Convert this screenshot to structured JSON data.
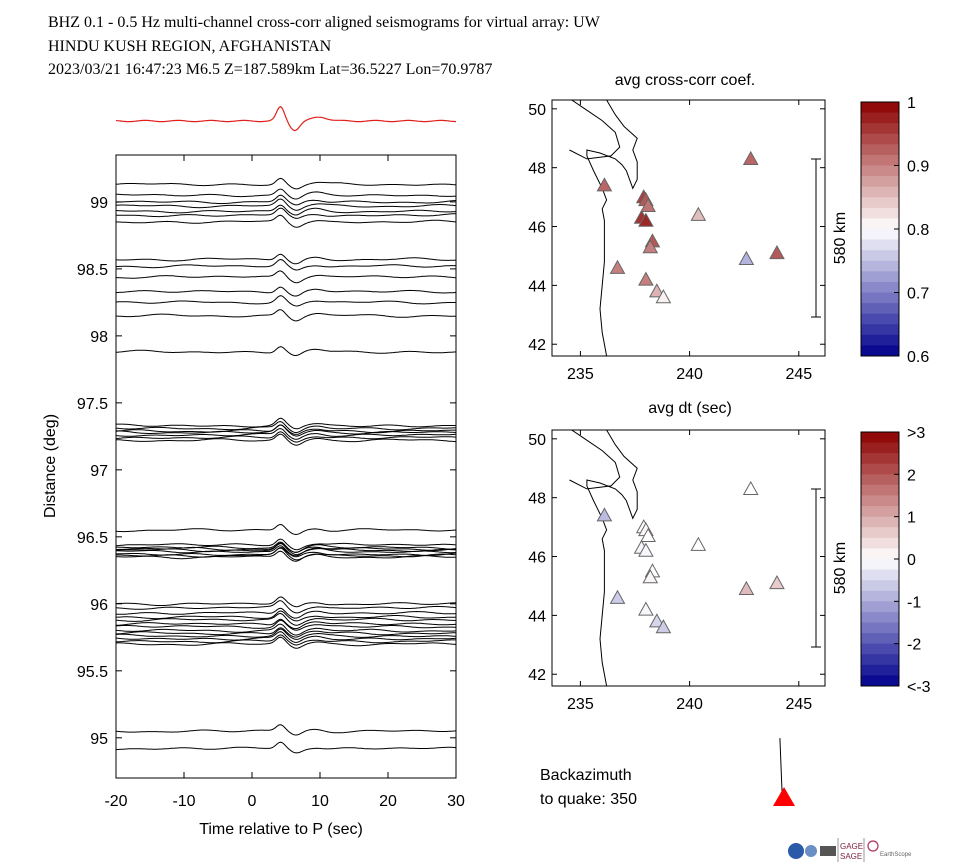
{
  "header": {
    "line1": "BHZ  0.1 - 0.5 Hz  multi-channel cross-corr aligned seismograms for virtual array: UW",
    "line2": "HINDU KUSH REGION, AFGHANISTAN",
    "line3": "2023/03/21  16:47:23  M6.5  Z=187.589km Lat=36.5227 Lon=70.9787"
  },
  "colors": {
    "stack": "#e0201c",
    "trace": "#000000",
    "triangle_pointer": "#ff0000"
  },
  "chart_data": [
    {
      "type": "line",
      "name": "seismogram-record-section",
      "xlabel": "Time relative to P (sec)",
      "ylabel": "Distance (deg)",
      "xlim": [
        -20,
        30
      ],
      "ylim": [
        94.7,
        99.35
      ],
      "xticks": [
        "-20",
        "-10",
        "0",
        "10",
        "20",
        "30"
      ],
      "yticks": [
        "95",
        "95.5",
        "96",
        "96.5",
        "97",
        "97.5",
        "98",
        "98.5",
        "99"
      ],
      "trace_distances_deg": [
        99.13,
        99.05,
        99.0,
        98.97,
        98.93,
        98.9,
        98.85,
        98.57,
        98.52,
        98.44,
        98.33,
        98.25,
        98.15,
        97.88,
        97.33,
        97.31,
        97.29,
        97.28,
        97.26,
        97.24,
        97.22,
        96.55,
        96.44,
        96.42,
        96.41,
        96.4,
        96.39,
        96.37,
        96.36,
        96.35,
        96.0,
        95.97,
        95.93,
        95.9,
        95.88,
        95.85,
        95.83,
        95.8,
        95.78,
        95.76,
        95.74,
        95.72,
        95.7,
        95.05,
        94.92
      ],
      "stack_above_axes": true
    },
    {
      "type": "scatter",
      "name": "cross-corr-map",
      "title": "avg cross-corr coef.",
      "xticks": [
        "235",
        "240",
        "245"
      ],
      "yticks": [
        "42",
        "44",
        "46",
        "48",
        "50"
      ],
      "xlim": [
        233.7,
        246.2
      ],
      "ylim": [
        41.6,
        50.3
      ],
      "scale_bar_label": "580 km",
      "colorbar_ticks": [
        "1",
        "0.9",
        "0.8",
        "0.7",
        "0.6"
      ],
      "colorbar_range": [
        0.6,
        1.0
      ],
      "stations": [
        {
          "lon": 236.1,
          "lat": 47.4,
          "v": 0.92
        },
        {
          "lon": 236.7,
          "lat": 44.6,
          "v": 0.9
        },
        {
          "lon": 237.8,
          "lat": 46.3,
          "v": 0.96
        },
        {
          "lon": 237.9,
          "lat": 47.0,
          "v": 0.95
        },
        {
          "lon": 238.0,
          "lat": 46.9,
          "v": 0.93
        },
        {
          "lon": 238.1,
          "lat": 46.7,
          "v": 0.91
        },
        {
          "lon": 238.0,
          "lat": 46.2,
          "v": 0.97
        },
        {
          "lon": 238.3,
          "lat": 45.5,
          "v": 0.93
        },
        {
          "lon": 238.2,
          "lat": 45.3,
          "v": 0.9
        },
        {
          "lon": 238.0,
          "lat": 44.2,
          "v": 0.9
        },
        {
          "lon": 238.5,
          "lat": 43.8,
          "v": 0.86
        },
        {
          "lon": 238.8,
          "lat": 43.6,
          "v": 0.81
        },
        {
          "lon": 240.4,
          "lat": 46.4,
          "v": 0.85
        },
        {
          "lon": 242.8,
          "lat": 48.3,
          "v": 0.92
        },
        {
          "lon": 242.6,
          "lat": 44.9,
          "v": 0.74
        },
        {
          "lon": 244.0,
          "lat": 45.1,
          "v": 0.93
        }
      ]
    },
    {
      "type": "scatter",
      "name": "delay-time-map",
      "title": "avg dt (sec)",
      "xticks": [
        "235",
        "240",
        "245"
      ],
      "yticks": [
        "42",
        "44",
        "46",
        "48",
        "50"
      ],
      "xlim": [
        233.7,
        246.2
      ],
      "ylim": [
        41.6,
        50.3
      ],
      "scale_bar_label": "580 km",
      "colorbar_ticks": [
        ">3",
        "2",
        "1",
        "0",
        "-1",
        "-2",
        "<-3"
      ],
      "colorbar_range": [
        -3,
        3
      ],
      "stations": [
        {
          "lon": 236.1,
          "lat": 47.4,
          "v": -0.8
        },
        {
          "lon": 236.7,
          "lat": 44.6,
          "v": -0.6
        },
        {
          "lon": 237.8,
          "lat": 46.3,
          "v": -0.1
        },
        {
          "lon": 237.9,
          "lat": 47.0,
          "v": 0.0
        },
        {
          "lon": 238.0,
          "lat": 46.9,
          "v": 0.1
        },
        {
          "lon": 238.1,
          "lat": 46.7,
          "v": 0.0
        },
        {
          "lon": 238.0,
          "lat": 46.2,
          "v": -0.1
        },
        {
          "lon": 238.3,
          "lat": 45.5,
          "v": 0.0
        },
        {
          "lon": 238.2,
          "lat": 45.3,
          "v": 0.1
        },
        {
          "lon": 238.0,
          "lat": 44.2,
          "v": -0.1
        },
        {
          "lon": 238.5,
          "lat": 43.8,
          "v": -0.5
        },
        {
          "lon": 238.8,
          "lat": 43.6,
          "v": -0.6
        },
        {
          "lon": 240.4,
          "lat": 46.4,
          "v": 0.0
        },
        {
          "lon": 242.8,
          "lat": 48.3,
          "v": 0.0
        },
        {
          "lon": 242.6,
          "lat": 44.9,
          "v": 0.8
        },
        {
          "lon": 244.0,
          "lat": 45.1,
          "v": 0.6
        }
      ]
    }
  ],
  "backazimuth": {
    "label_line1": "Backazimuth",
    "label_line2": "to quake:  350",
    "angle_deg": 350
  },
  "logos": {
    "gage": "GAGE",
    "sage": "SAGE",
    "earthscope": "EarthScope"
  }
}
